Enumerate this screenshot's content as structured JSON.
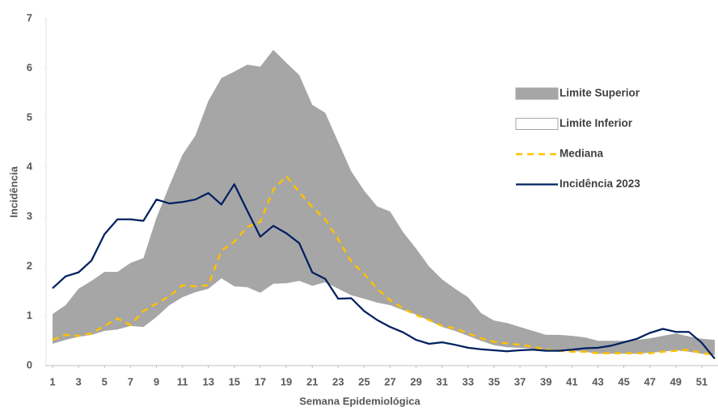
{
  "chart_data": {
    "type": "line",
    "xlabel": "Semana Epidemiológica",
    "ylabel": "Incidência",
    "x": [
      1,
      2,
      3,
      4,
      5,
      6,
      7,
      8,
      9,
      10,
      11,
      12,
      13,
      14,
      15,
      16,
      17,
      18,
      19,
      20,
      21,
      22,
      23,
      24,
      25,
      26,
      27,
      28,
      29,
      30,
      31,
      32,
      33,
      34,
      35,
      36,
      37,
      38,
      39,
      40,
      41,
      42,
      43,
      44,
      45,
      46,
      47,
      48,
      49,
      50,
      51,
      52
    ],
    "xlim": [
      1,
      52
    ],
    "xticks": [
      1,
      3,
      5,
      7,
      9,
      11,
      13,
      15,
      17,
      19,
      21,
      23,
      25,
      27,
      29,
      31,
      33,
      35,
      37,
      39,
      41,
      43,
      45,
      47,
      49,
      51
    ],
    "ylim": [
      0,
      7
    ],
    "yticks": [
      0,
      1,
      2,
      3,
      4,
      5,
      6,
      7
    ],
    "grid": false,
    "legend": "right",
    "series": [
      {
        "name": "Limite Superior",
        "type": "area",
        "color": "#a6a6a6",
        "values": [
          1.04,
          1.22,
          1.55,
          1.71,
          1.89,
          1.89,
          2.07,
          2.17,
          2.98,
          3.63,
          4.25,
          4.64,
          5.34,
          5.8,
          5.93,
          6.07,
          6.03,
          6.37,
          6.11,
          5.86,
          5.26,
          5.1,
          4.51,
          3.92,
          3.53,
          3.21,
          3.11,
          2.69,
          2.36,
          2.0,
          1.74,
          1.55,
          1.38,
          1.06,
          0.91,
          0.86,
          0.78,
          0.7,
          0.62,
          0.62,
          0.6,
          0.57,
          0.5,
          0.5,
          0.5,
          0.52,
          0.55,
          0.6,
          0.65,
          0.59,
          0.54,
          0.52
        ]
      },
      {
        "name": "Limite Inferior",
        "type": "area",
        "color": "#ffffff",
        "values": [
          0.44,
          0.52,
          0.58,
          0.62,
          0.7,
          0.73,
          0.8,
          0.78,
          0.98,
          1.22,
          1.38,
          1.48,
          1.55,
          1.76,
          1.6,
          1.58,
          1.47,
          1.65,
          1.66,
          1.71,
          1.61,
          1.68,
          1.55,
          1.42,
          1.35,
          1.27,
          1.22,
          1.12,
          1.03,
          0.91,
          0.78,
          0.7,
          0.6,
          0.5,
          0.41,
          0.37,
          0.36,
          0.34,
          0.31,
          0.31,
          0.29,
          0.28,
          0.24,
          0.24,
          0.24,
          0.24,
          0.26,
          0.28,
          0.31,
          0.28,
          0.24,
          0.21
        ]
      },
      {
        "name": "Mediana",
        "type": "line",
        "dashed": true,
        "color": "#ffc000",
        "values": [
          0.52,
          0.62,
          0.6,
          0.65,
          0.8,
          0.95,
          0.82,
          1.1,
          1.25,
          1.4,
          1.62,
          1.6,
          1.62,
          2.32,
          2.5,
          2.8,
          2.9,
          3.55,
          3.82,
          3.5,
          3.2,
          2.95,
          2.55,
          2.1,
          1.85,
          1.55,
          1.32,
          1.15,
          1.02,
          0.92,
          0.8,
          0.75,
          0.65,
          0.55,
          0.48,
          0.45,
          0.42,
          0.38,
          0.32,
          0.3,
          0.28,
          0.28,
          0.25,
          0.25,
          0.25,
          0.25,
          0.25,
          0.28,
          0.3,
          0.32,
          0.25,
          0.22
        ]
      },
      {
        "name": "Incidência 2023",
        "type": "line",
        "dashed": false,
        "color": "#002060",
        "values": [
          1.56,
          1.8,
          1.88,
          2.12,
          2.65,
          2.95,
          2.95,
          2.92,
          3.35,
          3.27,
          3.3,
          3.35,
          3.48,
          3.25,
          3.66,
          3.12,
          2.6,
          2.82,
          2.67,
          2.47,
          1.88,
          1.75,
          1.35,
          1.36,
          1.1,
          0.92,
          0.78,
          0.67,
          0.52,
          0.44,
          0.47,
          0.42,
          0.36,
          0.33,
          0.31,
          0.29,
          0.31,
          0.32,
          0.3,
          0.3,
          0.32,
          0.35,
          0.36,
          0.4,
          0.47,
          0.54,
          0.66,
          0.74,
          0.68,
          0.68,
          0.46,
          0.14
        ]
      }
    ]
  }
}
